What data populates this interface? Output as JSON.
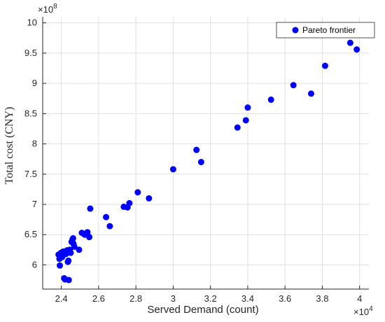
{
  "chart_data": {
    "type": "scatter",
    "xlabel": "Served Demand (count)",
    "ylabel": "Total cost (CNY)",
    "x_exponent": {
      "base": "×10",
      "power": "4"
    },
    "y_exponent": {
      "base": "×10",
      "power": "8"
    },
    "xlim": [
      2.3,
      4.05
    ],
    "ylim": [
      5.6,
      10.1
    ],
    "x_ticks": [
      2.4,
      2.6,
      2.8,
      3.0,
      3.2,
      3.4,
      3.6,
      3.8,
      4.0
    ],
    "x_tick_labels": [
      "2.4",
      "2.6",
      "2.8",
      "3",
      "3.2",
      "3.4",
      "3.6",
      "3.8",
      "4"
    ],
    "y_ticks": [
      6.0,
      6.5,
      7.0,
      7.5,
      8.0,
      8.5,
      9.0,
      9.5,
      10.0
    ],
    "y_tick_labels": [
      "6",
      "6.5",
      "7",
      "7.5",
      "8",
      "8.5",
      "9",
      "9.5",
      "10"
    ],
    "grid": true,
    "legend_position": "top-right",
    "colors": {
      "series": "#0000ff",
      "grid": "#e0e0e0",
      "axis": "#262626"
    },
    "series": [
      {
        "name": "Pareto frontier",
        "points": [
          [
            2.385,
            6.17
          ],
          [
            2.39,
            6.1
          ],
          [
            2.392,
            5.99
          ],
          [
            2.398,
            6.2
          ],
          [
            2.405,
            6.13
          ],
          [
            2.41,
            6.22
          ],
          [
            2.415,
            5.78
          ],
          [
            2.42,
            5.76
          ],
          [
            2.425,
            6.18
          ],
          [
            2.43,
            6.24
          ],
          [
            2.435,
            6.05
          ],
          [
            2.438,
            6.07
          ],
          [
            2.44,
            5.75
          ],
          [
            2.445,
            6.25
          ],
          [
            2.45,
            6.2
          ],
          [
            2.455,
            6.38
          ],
          [
            2.46,
            6.42
          ],
          [
            2.463,
            6.44
          ],
          [
            2.465,
            6.35
          ],
          [
            2.47,
            6.3
          ],
          [
            2.495,
            6.25
          ],
          [
            2.51,
            6.53
          ],
          [
            2.525,
            6.5
          ],
          [
            2.54,
            6.54
          ],
          [
            2.55,
            6.46
          ],
          [
            2.555,
            6.93
          ],
          [
            2.64,
            6.79
          ],
          [
            2.66,
            6.64
          ],
          [
            2.735,
            6.96
          ],
          [
            2.755,
            6.95
          ],
          [
            2.765,
            7.02
          ],
          [
            2.81,
            7.2
          ],
          [
            2.87,
            7.1
          ],
          [
            3.0,
            7.58
          ],
          [
            3.125,
            7.9
          ],
          [
            3.15,
            7.7
          ],
          [
            3.345,
            8.27
          ],
          [
            3.39,
            8.39
          ],
          [
            3.4,
            8.6
          ],
          [
            3.525,
            8.73
          ],
          [
            3.645,
            8.97
          ],
          [
            3.74,
            8.83
          ],
          [
            3.815,
            9.29
          ],
          [
            3.95,
            9.67
          ],
          [
            3.985,
            9.56
          ]
        ]
      }
    ]
  }
}
